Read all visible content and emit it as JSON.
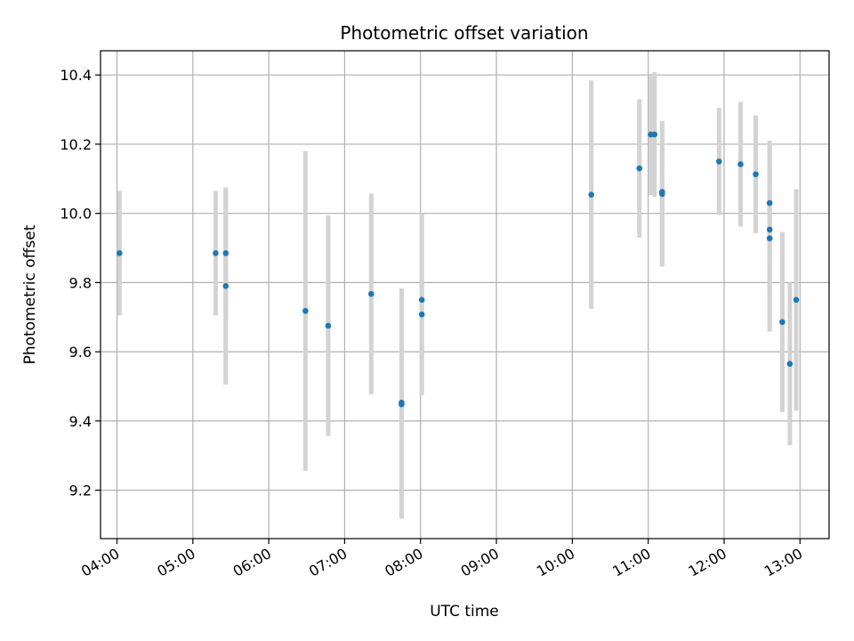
{
  "chart_data": {
    "type": "scatter",
    "title": "Photometric offset variation",
    "xlabel": "UTC time",
    "ylabel": "Photometric offset",
    "x_tick_labels": [
      "04:00",
      "05:00",
      "06:00",
      "07:00",
      "08:00",
      "09:00",
      "10:00",
      "11:00",
      "12:00",
      "13:00"
    ],
    "y_tick_labels": [
      "9.2",
      "9.4",
      "9.6",
      "9.8",
      "10.0",
      "10.2",
      "10.4"
    ],
    "y_ticks": [
      9.2,
      9.4,
      9.6,
      9.8,
      10.0,
      10.2,
      10.4
    ],
    "xlim": [
      "03:47",
      "13:23"
    ],
    "ylim": [
      9.06,
      10.47
    ],
    "grid": true,
    "colors": {
      "points": "#1f77b4",
      "error_bars": "#d3d3d3",
      "grid": "#b0b0b0"
    },
    "series": [
      {
        "points": [
          {
            "x": "04:02",
            "y": 9.885,
            "err": 0.18
          },
          {
            "x": "05:18",
            "y": 9.885,
            "err": 0.18
          },
          {
            "x": "05:26",
            "y": 9.885,
            "err": 0.19
          },
          {
            "x": "05:26",
            "y": 9.79,
            "err": 0.285
          },
          {
            "x": "06:29",
            "y": 9.718,
            "err": 0.462
          },
          {
            "x": "06:47",
            "y": 9.675,
            "err": 0.318
          },
          {
            "x": "07:21",
            "y": 9.767,
            "err": 0.29
          },
          {
            "x": "07:45",
            "y": 9.453,
            "err": 0.33
          },
          {
            "x": "07:45",
            "y": 9.448,
            "err": 0.33
          },
          {
            "x": "08:01",
            "y": 9.75,
            "err": 0.25
          },
          {
            "x": "08:01",
            "y": 9.708,
            "err": 0.233
          },
          {
            "x": "10:15",
            "y": 10.054,
            "err": 0.33
          },
          {
            "x": "10:53",
            "y": 10.13,
            "err": 0.2
          },
          {
            "x": "11:02",
            "y": 10.228,
            "err": 0.175
          },
          {
            "x": "11:05",
            "y": 10.228,
            "err": 0.18
          },
          {
            "x": "11:11",
            "y": 10.062,
            "err": 0.205
          },
          {
            "x": "11:11",
            "y": 10.056,
            "err": 0.21
          },
          {
            "x": "11:56",
            "y": 10.15,
            "err": 0.155
          },
          {
            "x": "12:13",
            "y": 10.142,
            "err": 0.18
          },
          {
            "x": "12:25",
            "y": 10.113,
            "err": 0.17
          },
          {
            "x": "12:36",
            "y": 10.03,
            "err": 0.18
          },
          {
            "x": "12:36",
            "y": 9.953,
            "err": 0.175
          },
          {
            "x": "12:36",
            "y": 9.928,
            "err": 0.27
          },
          {
            "x": "12:46",
            "y": 9.686,
            "err": 0.26
          },
          {
            "x": "12:52",
            "y": 9.565,
            "err": 0.235
          },
          {
            "x": "12:57",
            "y": 9.75,
            "err": 0.32
          }
        ]
      }
    ]
  }
}
